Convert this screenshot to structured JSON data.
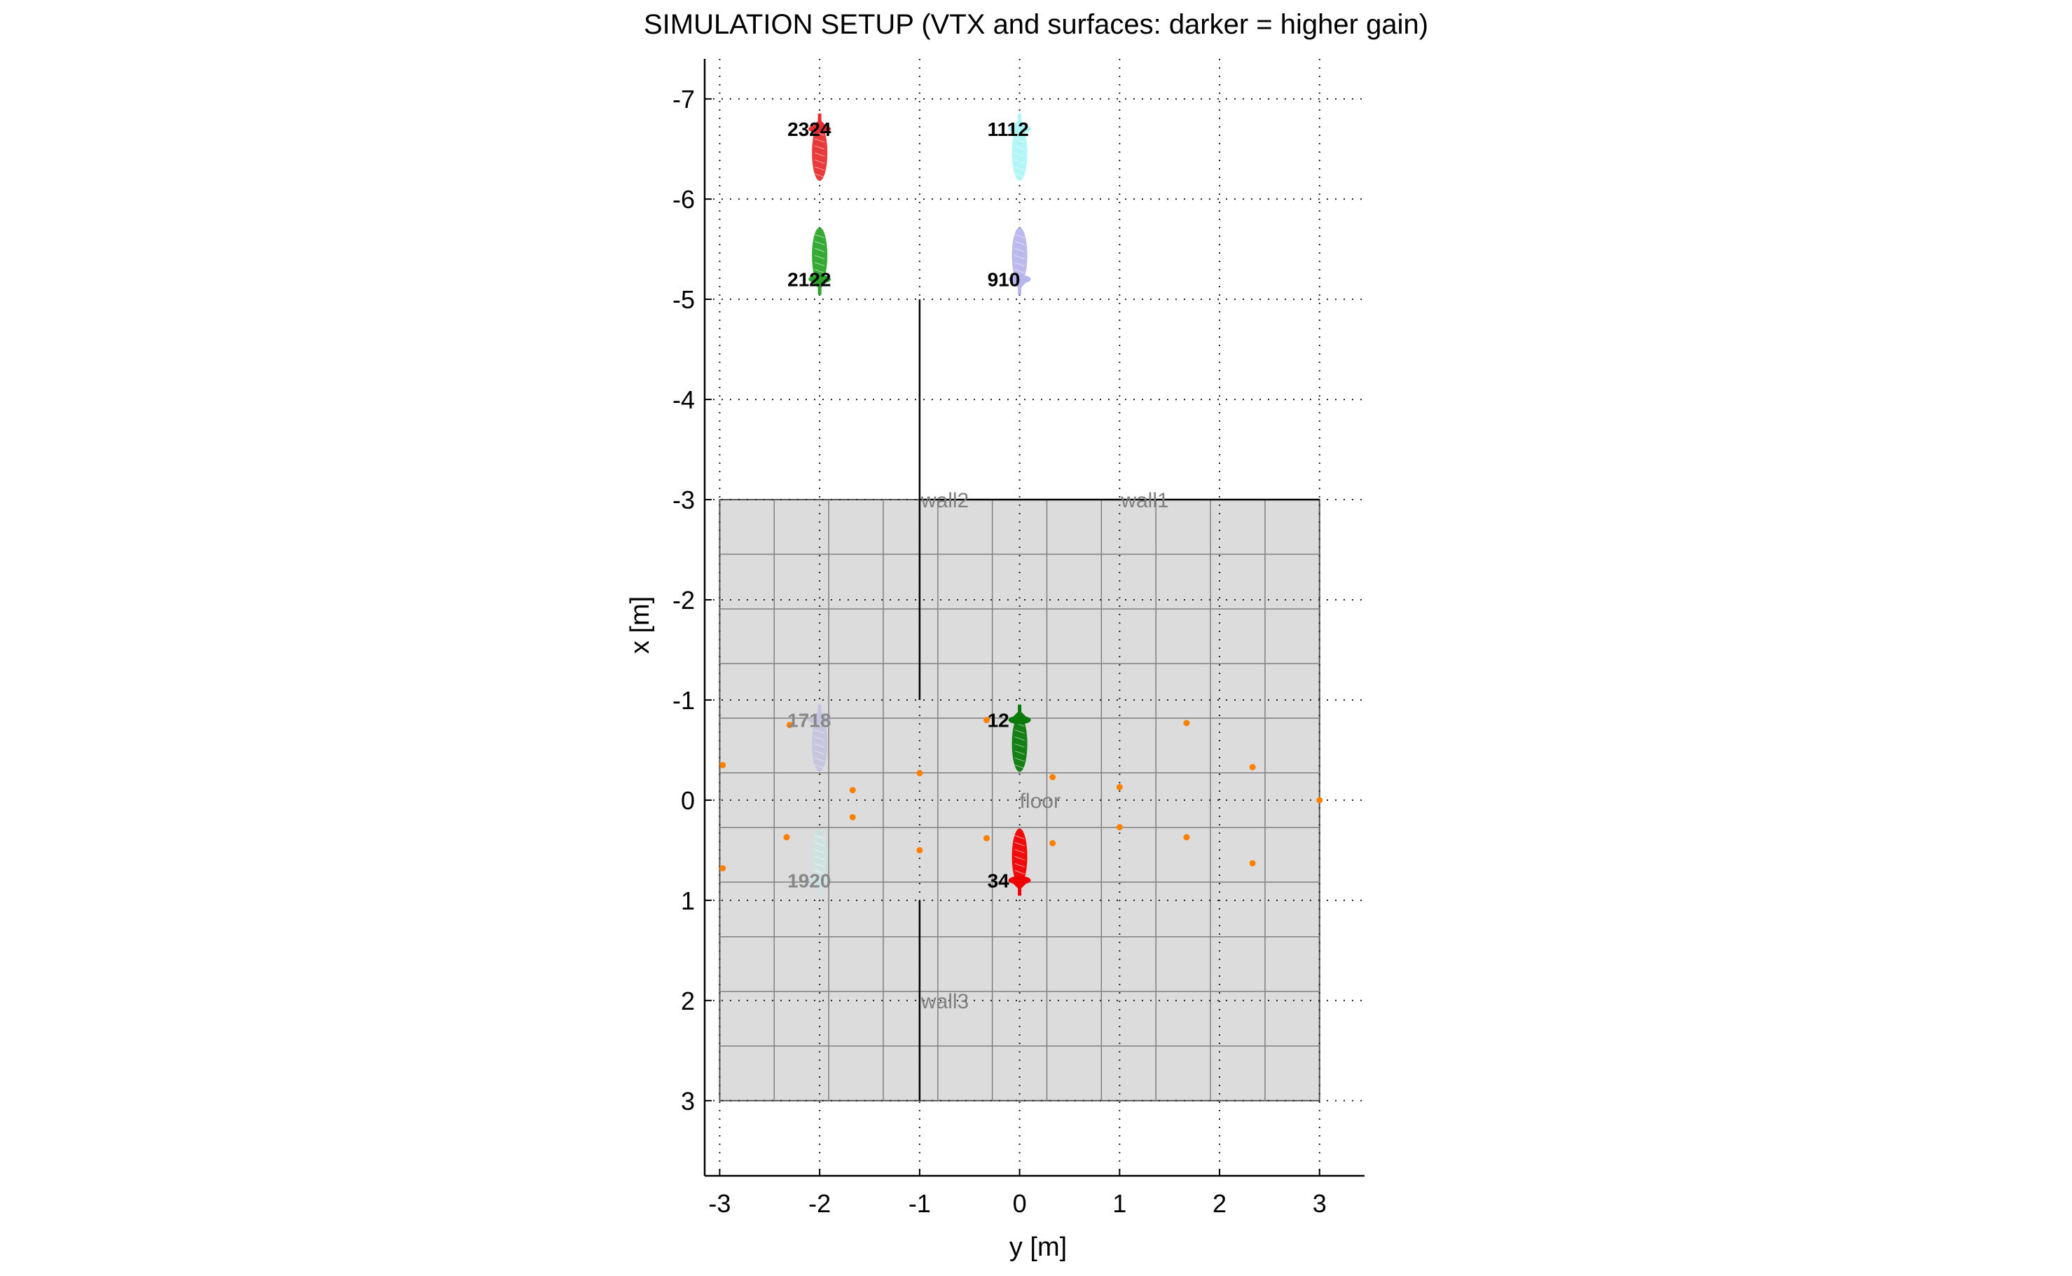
{
  "chart_data": {
    "type": "scatter",
    "title": "SIMULATION SETUP (VTX and surfaces: darker = higher gain)",
    "xlabel": "y [m]",
    "ylabel": "x [m]",
    "xlim": [
      -3.15,
      3.45
    ],
    "ylim": [
      -7.4,
      3.75
    ],
    "y_reversed": true,
    "grid": "dotted",
    "xticks": [
      -3,
      -2,
      -1,
      0,
      1,
      2,
      3
    ],
    "xtick_labels": [
      "-3",
      "-2",
      "-1",
      "0",
      "1",
      "2",
      "3"
    ],
    "yticks": [
      -7,
      -6,
      -5,
      -4,
      -3,
      -2,
      -1,
      0,
      1,
      2,
      3
    ],
    "ytick_labels": [
      "-7",
      "-6",
      "-5",
      "-4",
      "-3",
      "-2",
      "-1",
      "0",
      "1",
      "2",
      "3"
    ],
    "floor": {
      "label": "floor",
      "y_range": [
        -3,
        3
      ],
      "x_range": [
        -3,
        3
      ],
      "label_at": [
        0,
        0
      ],
      "color": "#dcdcdc",
      "grid_cols": 11,
      "grid_rows": 11
    },
    "walls": [
      {
        "label": "wall1",
        "points": [
          [
            -1,
            -3
          ],
          [
            3,
            -3
          ]
        ],
        "label_at": [
          1,
          -3
        ]
      },
      {
        "label": "wall2",
        "points": [
          [
            -1,
            -5
          ],
          [
            -1,
            -1
          ]
        ],
        "label_at": [
          -1,
          -3
        ]
      },
      {
        "label": "wall3",
        "points": [
          [
            -1,
            1
          ],
          [
            -1,
            3
          ]
        ],
        "label_at": [
          -1,
          2
        ]
      }
    ],
    "vtx": [
      {
        "y": -2,
        "x": -6.7,
        "label": "2324",
        "color": "#e83030",
        "dir": "up",
        "text_color": "#000000"
      },
      {
        "y": 0,
        "x": -6.7,
        "label": "1112",
        "color": "#aef5f5",
        "dir": "up",
        "text_color": "#000000"
      },
      {
        "y": -2,
        "x": -5.2,
        "label": "2122",
        "color": "#2aa52a",
        "dir": "down",
        "text_color": "#000000"
      },
      {
        "y": 0,
        "x": -5.2,
        "label": "910",
        "color": "#b6b6ec",
        "dir": "down",
        "text_color": "#000000"
      },
      {
        "y": -2,
        "x": -0.8,
        "label": "1718",
        "color": "#c4c4de",
        "dir": "up",
        "text_color": "#888888"
      },
      {
        "y": 0,
        "x": -0.8,
        "label": "12",
        "color": "#0a7a0a",
        "dir": "up",
        "text_color": "#000000"
      },
      {
        "y": -2,
        "x": 0.8,
        "label": "1920",
        "color": "#cde2e2",
        "dir": "down",
        "text_color": "#888888"
      },
      {
        "y": 0,
        "x": 0.8,
        "label": "34",
        "color": "#f00000",
        "dir": "down",
        "text_color": "#000000"
      }
    ],
    "points": [
      {
        "y": -2.3,
        "x": -0.75
      },
      {
        "y": -0.33,
        "x": -0.8
      },
      {
        "y": 1.67,
        "x": -0.77
      },
      {
        "y": -2.97,
        "x": -0.35
      },
      {
        "y": 2.33,
        "x": -0.33
      },
      {
        "y": -1.0,
        "x": -0.27
      },
      {
        "y": 0.33,
        "x": -0.23
      },
      {
        "y": -1.67,
        "x": -0.1
      },
      {
        "y": 1.0,
        "x": -0.13
      },
      {
        "y": 3.0,
        "x": 0.0
      },
      {
        "y": -1.67,
        "x": 0.17
      },
      {
        "y": 1.0,
        "x": 0.27
      },
      {
        "y": -2.33,
        "x": 0.37
      },
      {
        "y": -0.33,
        "x": 0.38
      },
      {
        "y": 1.67,
        "x": 0.37
      },
      {
        "y": 0.33,
        "x": 0.43
      },
      {
        "y": -1.0,
        "x": 0.5
      },
      {
        "y": 2.33,
        "x": 0.63
      },
      {
        "y": -2.97,
        "x": 0.68
      }
    ],
    "point_color": "#ff8000"
  }
}
